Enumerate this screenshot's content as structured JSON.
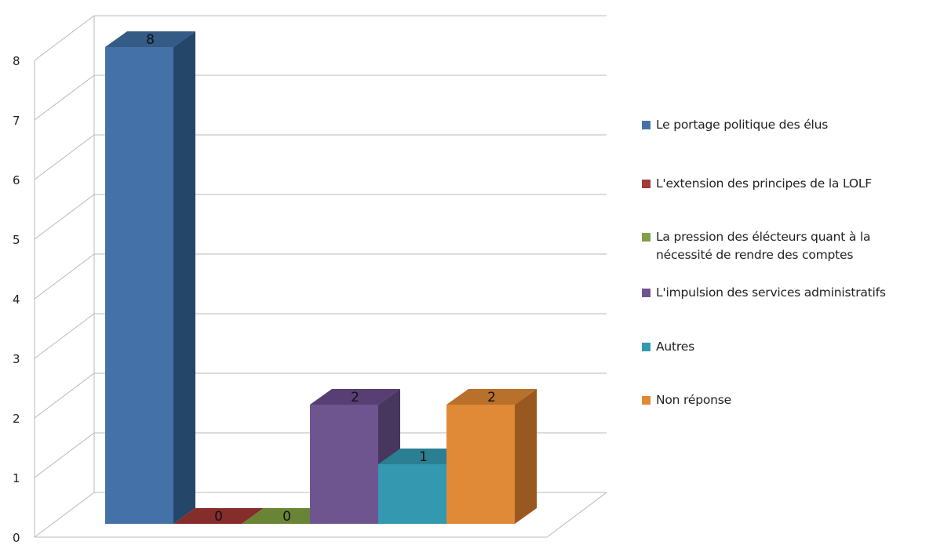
{
  "chart_data": {
    "type": "bar",
    "categories": [
      "Le portage politique des élus",
      "L'extension des principes de la LOLF",
      "La pression des élécteurs quant à la nécessité de rendre des comptes",
      "L'impulsion des services administratifs",
      "Autres",
      "Non réponse"
    ],
    "values": [
      8,
      0,
      0,
      2,
      1,
      2
    ],
    "data_labels": [
      "8",
      "0",
      "0",
      "2",
      "1",
      "2"
    ],
    "colors": [
      "#4472A8",
      "#A23A37",
      "#82A045",
      "#6E5590",
      "#3398B0",
      "#E08A38"
    ],
    "side_colors": [
      "#244668",
      "#6E2422",
      "#536A2A",
      "#47375E",
      "#1E6474",
      "#995820"
    ],
    "top_colors": [
      "#345A86",
      "#842D2B",
      "#6A8436",
      "#573F74",
      "#2A7F93",
      "#B8702A"
    ],
    "ylim": [
      0,
      8
    ],
    "yticks": [
      "0",
      "1",
      "2",
      "3",
      "4",
      "5",
      "6",
      "7",
      "8"
    ],
    "grid": true,
    "legend_position": "right",
    "three_d": true,
    "title": "",
    "xlabel": "",
    "ylabel": ""
  }
}
